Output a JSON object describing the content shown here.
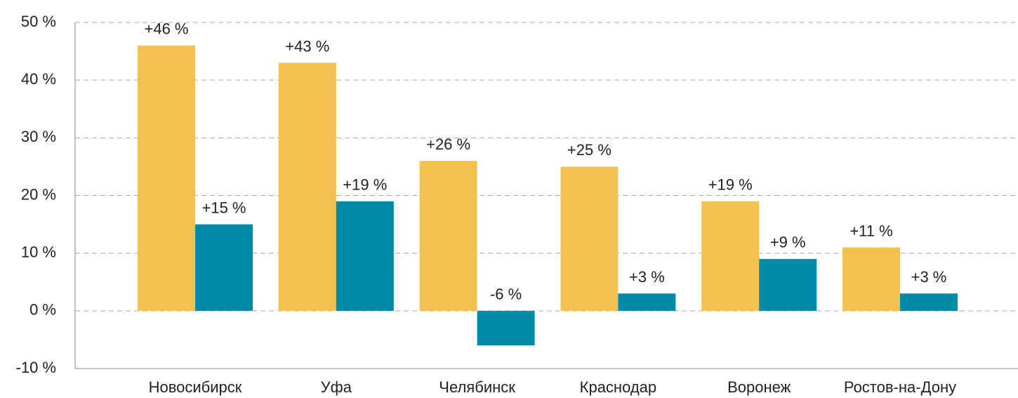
{
  "chart_data": {
    "type": "bar",
    "categories": [
      "Новосибирск",
      "Уфа",
      "Челябинск",
      "Краснодар",
      "Воронеж",
      "Ростов-на-Дону"
    ],
    "series": [
      {
        "color": "#f2c14e",
        "values": [
          46,
          43,
          26,
          25,
          19,
          11
        ],
        "value_labels": [
          "+46 %",
          "+43 %",
          "+26 %",
          "+25 %",
          "+19 %",
          "+11 %"
        ]
      },
      {
        "color": "#008ca8",
        "values": [
          15,
          19,
          -6,
          3,
          9,
          3
        ],
        "value_labels": [
          "+15 %",
          "+19 %",
          "-6 %",
          "+3 %",
          "+9 %",
          "+3 %"
        ]
      }
    ],
    "ylim": [
      -10,
      50
    ],
    "yticks": [
      {
        "value": -10,
        "label": "-10 %"
      },
      {
        "value": 0,
        "label": "0 %"
      },
      {
        "value": 10,
        "label": "10 %"
      },
      {
        "value": 20,
        "label": "20 %"
      },
      {
        "value": 30,
        "label": "30 %"
      },
      {
        "value": 40,
        "label": "40 %"
      },
      {
        "value": 50,
        "label": "50 %"
      }
    ],
    "grid": true
  }
}
